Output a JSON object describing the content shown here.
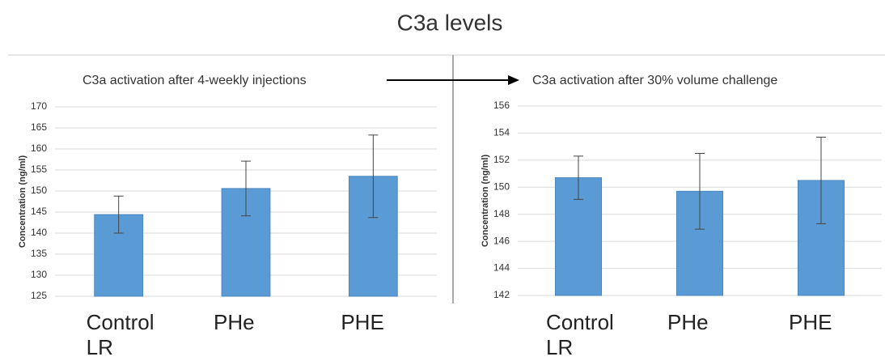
{
  "title": "C3a levels",
  "chart_data": [
    {
      "type": "bar",
      "title": "C3a activation after 4-weekly injections",
      "y_label": "Concentration (ng/ml)",
      "categories": [
        "Control LR",
        "PHe",
        "PHE"
      ],
      "values": [
        144.4,
        150.6,
        153.5
      ],
      "errors": [
        4.4,
        6.5,
        9.8
      ],
      "color": "#5b9bd5",
      "ylim": [
        125,
        170
      ],
      "yticks": [
        125,
        130,
        135,
        140,
        145,
        150,
        155,
        160,
        165,
        170
      ],
      "grid": true
    },
    {
      "type": "bar",
      "title": "C3a activation after 30% volume challenge",
      "y_label": "Concentration (ng/ml)",
      "categories": [
        "Control LR",
        "PHe",
        "PHE"
      ],
      "values": [
        150.7,
        149.7,
        150.5
      ],
      "errors": [
        1.6,
        2.8,
        3.2
      ],
      "color": "#5b9bd5",
      "ylim": [
        142,
        156
      ],
      "yticks": [
        142,
        144,
        146,
        148,
        150,
        152,
        154,
        156
      ],
      "grid": true
    }
  ]
}
